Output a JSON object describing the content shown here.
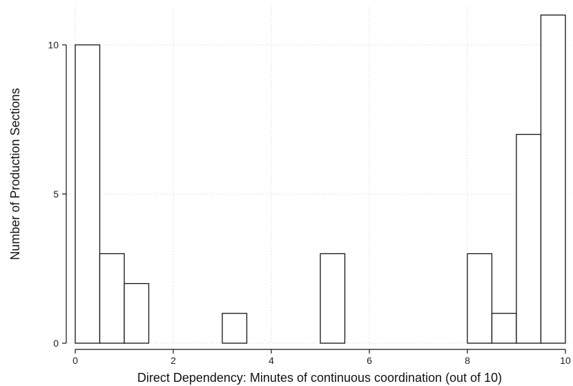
{
  "chart_data": {
    "type": "bar",
    "xlabel": "Direct Dependency: Minutes of continuous coordination (out of 10)",
    "ylabel": "Number of Production Sections",
    "xlim": [
      0,
      10
    ],
    "ylim": [
      0,
      11
    ],
    "bin_width": 0.5,
    "x_ticks": [
      0,
      2,
      4,
      6,
      8,
      10
    ],
    "y_ticks": [
      0,
      5,
      10
    ],
    "grid": true,
    "bars": [
      {
        "x_start": 0.0,
        "x_end": 0.5,
        "value": 10
      },
      {
        "x_start": 0.5,
        "x_end": 1.0,
        "value": 3
      },
      {
        "x_start": 1.0,
        "x_end": 1.5,
        "value": 2
      },
      {
        "x_start": 3.0,
        "x_end": 3.5,
        "value": 1
      },
      {
        "x_start": 5.0,
        "x_end": 5.5,
        "value": 3
      },
      {
        "x_start": 8.0,
        "x_end": 8.5,
        "value": 3
      },
      {
        "x_start": 8.5,
        "x_end": 9.0,
        "value": 1
      },
      {
        "x_start": 9.0,
        "x_end": 9.5,
        "value": 7
      },
      {
        "x_start": 9.5,
        "x_end": 10.0,
        "value": 11
      }
    ],
    "colors": {
      "bar_fill": "#ffffff",
      "bar_stroke": "#111111",
      "grid": "#d8d8d8"
    }
  }
}
